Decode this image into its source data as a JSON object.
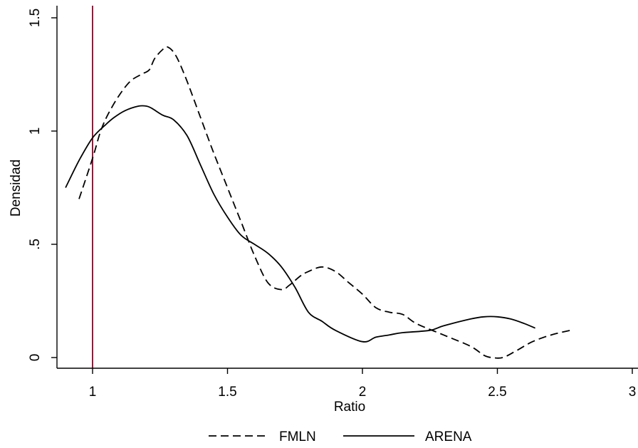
{
  "chart_data": {
    "type": "line",
    "title": "",
    "xlabel": "Ratio",
    "ylabel": "Densidad",
    "xlim": [
      0.87,
      2.99
    ],
    "ylim": [
      0,
      1.5
    ],
    "xticks": [
      {
        "value": 1,
        "label": "1"
      },
      {
        "value": 1.5,
        "label": "1.5"
      },
      {
        "value": 2,
        "label": "2"
      },
      {
        "value": 2.5,
        "label": "2.5"
      },
      {
        "value": 3,
        "label": "3"
      }
    ],
    "yticks": [
      {
        "value": 0,
        "label": "0"
      },
      {
        "value": 0.5,
        "label": ".5"
      },
      {
        "value": 1,
        "label": "1"
      },
      {
        "value": 1.5,
        "label": "1.5"
      }
    ],
    "grid": false,
    "legend": "bottom",
    "reference_line": {
      "x": 1,
      "color": "#a0143c"
    },
    "series": [
      {
        "name": "FMLN",
        "dash": "dashed",
        "color": "#000000",
        "x": [
          0.95,
          1.0,
          1.03,
          1.06,
          1.1,
          1.14,
          1.18,
          1.21,
          1.23,
          1.26,
          1.28,
          1.31,
          1.35,
          1.4,
          1.45,
          1.5,
          1.55,
          1.6,
          1.65,
          1.7,
          1.73,
          1.77,
          1.8,
          1.85,
          1.9,
          1.95,
          2.0,
          2.05,
          2.1,
          2.15,
          2.2,
          2.3,
          2.4,
          2.45,
          2.48,
          2.52,
          2.57,
          2.63,
          2.7,
          2.77
        ],
        "y": [
          0.7,
          0.88,
          1.0,
          1.08,
          1.16,
          1.22,
          1.25,
          1.27,
          1.32,
          1.36,
          1.37,
          1.33,
          1.22,
          1.06,
          0.9,
          0.75,
          0.6,
          0.45,
          0.33,
          0.3,
          0.32,
          0.36,
          0.38,
          0.4,
          0.38,
          0.33,
          0.28,
          0.22,
          0.2,
          0.19,
          0.15,
          0.1,
          0.05,
          0.01,
          0.0,
          0.0,
          0.03,
          0.07,
          0.1,
          0.12
        ]
      },
      {
        "name": "ARENA",
        "dash": "solid",
        "color": "#000000",
        "x": [
          0.9,
          0.95,
          1.0,
          1.05,
          1.08,
          1.12,
          1.17,
          1.2,
          1.22,
          1.26,
          1.3,
          1.35,
          1.4,
          1.45,
          1.5,
          1.55,
          1.6,
          1.65,
          1.7,
          1.75,
          1.8,
          1.85,
          1.9,
          2.0,
          2.05,
          2.1,
          2.15,
          2.25,
          2.3,
          2.4,
          2.45,
          2.5,
          2.55,
          2.6,
          2.64
        ],
        "y": [
          0.75,
          0.87,
          0.97,
          1.03,
          1.06,
          1.09,
          1.11,
          1.11,
          1.1,
          1.07,
          1.05,
          0.98,
          0.85,
          0.72,
          0.62,
          0.54,
          0.5,
          0.46,
          0.4,
          0.31,
          0.2,
          0.16,
          0.12,
          0.07,
          0.09,
          0.1,
          0.11,
          0.12,
          0.14,
          0.17,
          0.18,
          0.18,
          0.17,
          0.15,
          0.13
        ]
      }
    ]
  }
}
